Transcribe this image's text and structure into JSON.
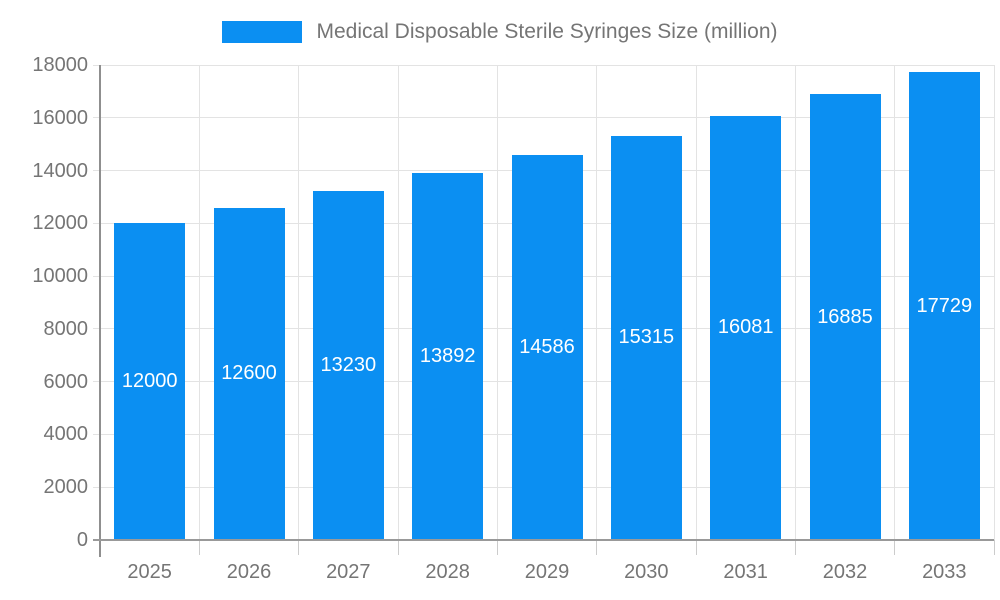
{
  "legend": {
    "label": "Medical Disposable Sterile Syringes Size (million)"
  },
  "chart_data": {
    "type": "bar",
    "title": "Medical Disposable Sterile Syringes Size (million)",
    "categories": [
      "2025",
      "2026",
      "2027",
      "2028",
      "2029",
      "2030",
      "2031",
      "2032",
      "2033"
    ],
    "series": [
      {
        "name": "Medical Disposable Sterile Syringes Size (million)",
        "values": [
          12000,
          12600,
          13230,
          13892,
          14586,
          15315,
          16081,
          16885,
          17729
        ]
      }
    ],
    "xlabel": "",
    "ylabel": "",
    "ylim": [
      0,
      18000
    ],
    "ytick_step": 2000,
    "grid": true,
    "legend_position": "top",
    "bar_color": "#0b8ff2",
    "bar_label_color": "#ffffff",
    "axis_text_color": "#757575",
    "gridline_color": "#e3e3e3"
  }
}
